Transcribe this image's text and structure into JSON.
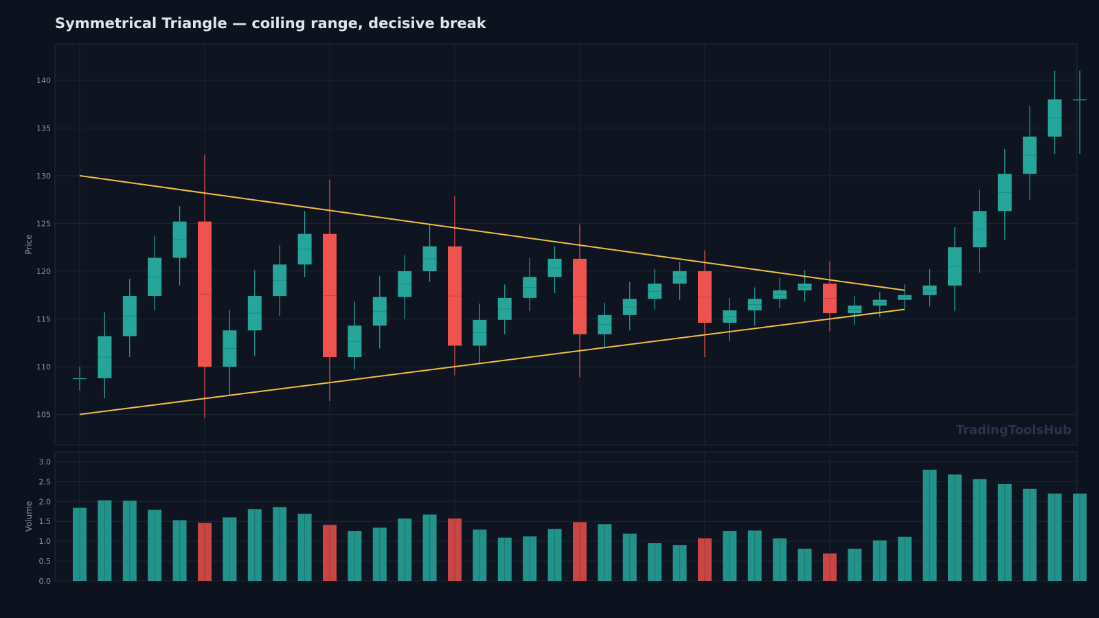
{
  "title": "Symmetrical Triangle — coiling range, decisive break",
  "watermark": "TradingToolsHub",
  "colors": {
    "background": "#0d131e",
    "panel": "#0e1521",
    "grid": "#1a2633",
    "up": "#26a69a",
    "down": "#ef5350",
    "trendline": "#f0c040",
    "volume_up": "#22928a",
    "volume_down": "#c94645"
  },
  "chart_data": [
    {
      "type": "candlestick",
      "title": "Symmetrical Triangle — coiling range, decisive break",
      "ylabel": "Price",
      "xlabel": "",
      "ylim": [
        101.8,
        143.8
      ],
      "yticks": [
        105,
        110,
        115,
        120,
        125,
        130,
        135,
        140
      ],
      "grid": true,
      "x": [
        0,
        1,
        2,
        3,
        4,
        5,
        6,
        7,
        8,
        9,
        10,
        11,
        12,
        13,
        14,
        15,
        16,
        17,
        18,
        19,
        20,
        21,
        22,
        23,
        24,
        25,
        26,
        27,
        28,
        29,
        30,
        31,
        32,
        33,
        34,
        35,
        36,
        37,
        38,
        39,
        40
      ],
      "open": [
        108.8,
        108.8,
        113.2,
        117.4,
        121.4,
        125.2,
        110.0,
        113.8,
        117.4,
        120.7,
        123.9,
        111.0,
        114.3,
        117.3,
        120.0,
        122.6,
        112.2,
        114.9,
        117.2,
        119.4,
        121.3,
        113.4,
        115.4,
        117.1,
        118.7,
        120.0,
        114.6,
        115.9,
        117.1,
        118.0,
        118.7,
        115.6,
        116.4,
        117.0,
        117.5,
        118.5,
        122.5,
        126.3,
        130.2,
        134.1,
        138.0
      ],
      "high": [
        110.0,
        115.7,
        119.2,
        123.7,
        126.8,
        132.2,
        115.9,
        120.1,
        122.7,
        126.3,
        129.6,
        116.8,
        119.5,
        121.7,
        124.9,
        127.9,
        116.6,
        118.6,
        121.4,
        122.6,
        124.9,
        116.7,
        118.9,
        120.2,
        121.0,
        122.2,
        117.2,
        118.3,
        119.3,
        120.1,
        121.0,
        117.4,
        117.8,
        118.6,
        120.2,
        124.6,
        128.5,
        132.8,
        137.3,
        141.0,
        141.0
      ],
      "low": [
        107.5,
        106.7,
        111.0,
        115.9,
        118.5,
        104.6,
        107.0,
        111.1,
        115.3,
        119.4,
        106.4,
        109.7,
        111.9,
        115.0,
        118.9,
        109.1,
        110.4,
        113.4,
        115.8,
        117.7,
        108.9,
        112.0,
        113.8,
        116.0,
        117.0,
        111.0,
        112.7,
        114.3,
        116.1,
        116.8,
        113.7,
        114.4,
        115.2,
        116.1,
        116.3,
        115.8,
        119.8,
        123.3,
        127.5,
        132.3,
        132.3
      ],
      "close": [
        108.8,
        113.2,
        117.4,
        121.4,
        125.2,
        110.0,
        113.8,
        117.4,
        120.7,
        123.9,
        111.0,
        114.3,
        117.3,
        120.0,
        122.6,
        112.2,
        114.9,
        117.2,
        119.4,
        121.3,
        113.4,
        115.4,
        117.1,
        118.7,
        120.0,
        114.6,
        115.9,
        117.1,
        118.0,
        118.7,
        115.6,
        116.4,
        117.0,
        117.5,
        118.5,
        122.5,
        126.3,
        130.2,
        134.1,
        138.0,
        138.0
      ],
      "trendlines": [
        {
          "from": [
            0,
            130.0
          ],
          "to": [
            33,
            118.0
          ]
        },
        {
          "from": [
            0,
            105.0
          ],
          "to": [
            33,
            116.0
          ]
        }
      ]
    },
    {
      "type": "bar",
      "ylabel": "Volume",
      "ylim": [
        0,
        3.25
      ],
      "yticks": [
        0.0,
        0.5,
        1.0,
        1.5,
        2.0,
        2.5,
        3.0
      ],
      "x": [
        0,
        1,
        2,
        3,
        4,
        5,
        6,
        7,
        8,
        9,
        10,
        11,
        12,
        13,
        14,
        15,
        16,
        17,
        18,
        19,
        20,
        21,
        22,
        23,
        24,
        25,
        26,
        27,
        28,
        29,
        30,
        31,
        32,
        33,
        34,
        35,
        36,
        37,
        38,
        39,
        40
      ],
      "values": [
        1.84,
        2.03,
        2.02,
        1.79,
        1.53,
        1.46,
        1.6,
        1.81,
        1.86,
        1.69,
        1.41,
        1.26,
        1.34,
        1.57,
        1.67,
        1.57,
        1.29,
        1.09,
        1.12,
        1.31,
        1.48,
        1.43,
        1.19,
        0.95,
        0.9,
        1.07,
        1.26,
        1.27,
        1.07,
        0.81,
        0.69,
        0.81,
        1.02,
        1.11,
        2.8,
        2.68,
        2.56,
        2.44,
        2.32,
        2.2,
        2.2
      ]
    }
  ]
}
